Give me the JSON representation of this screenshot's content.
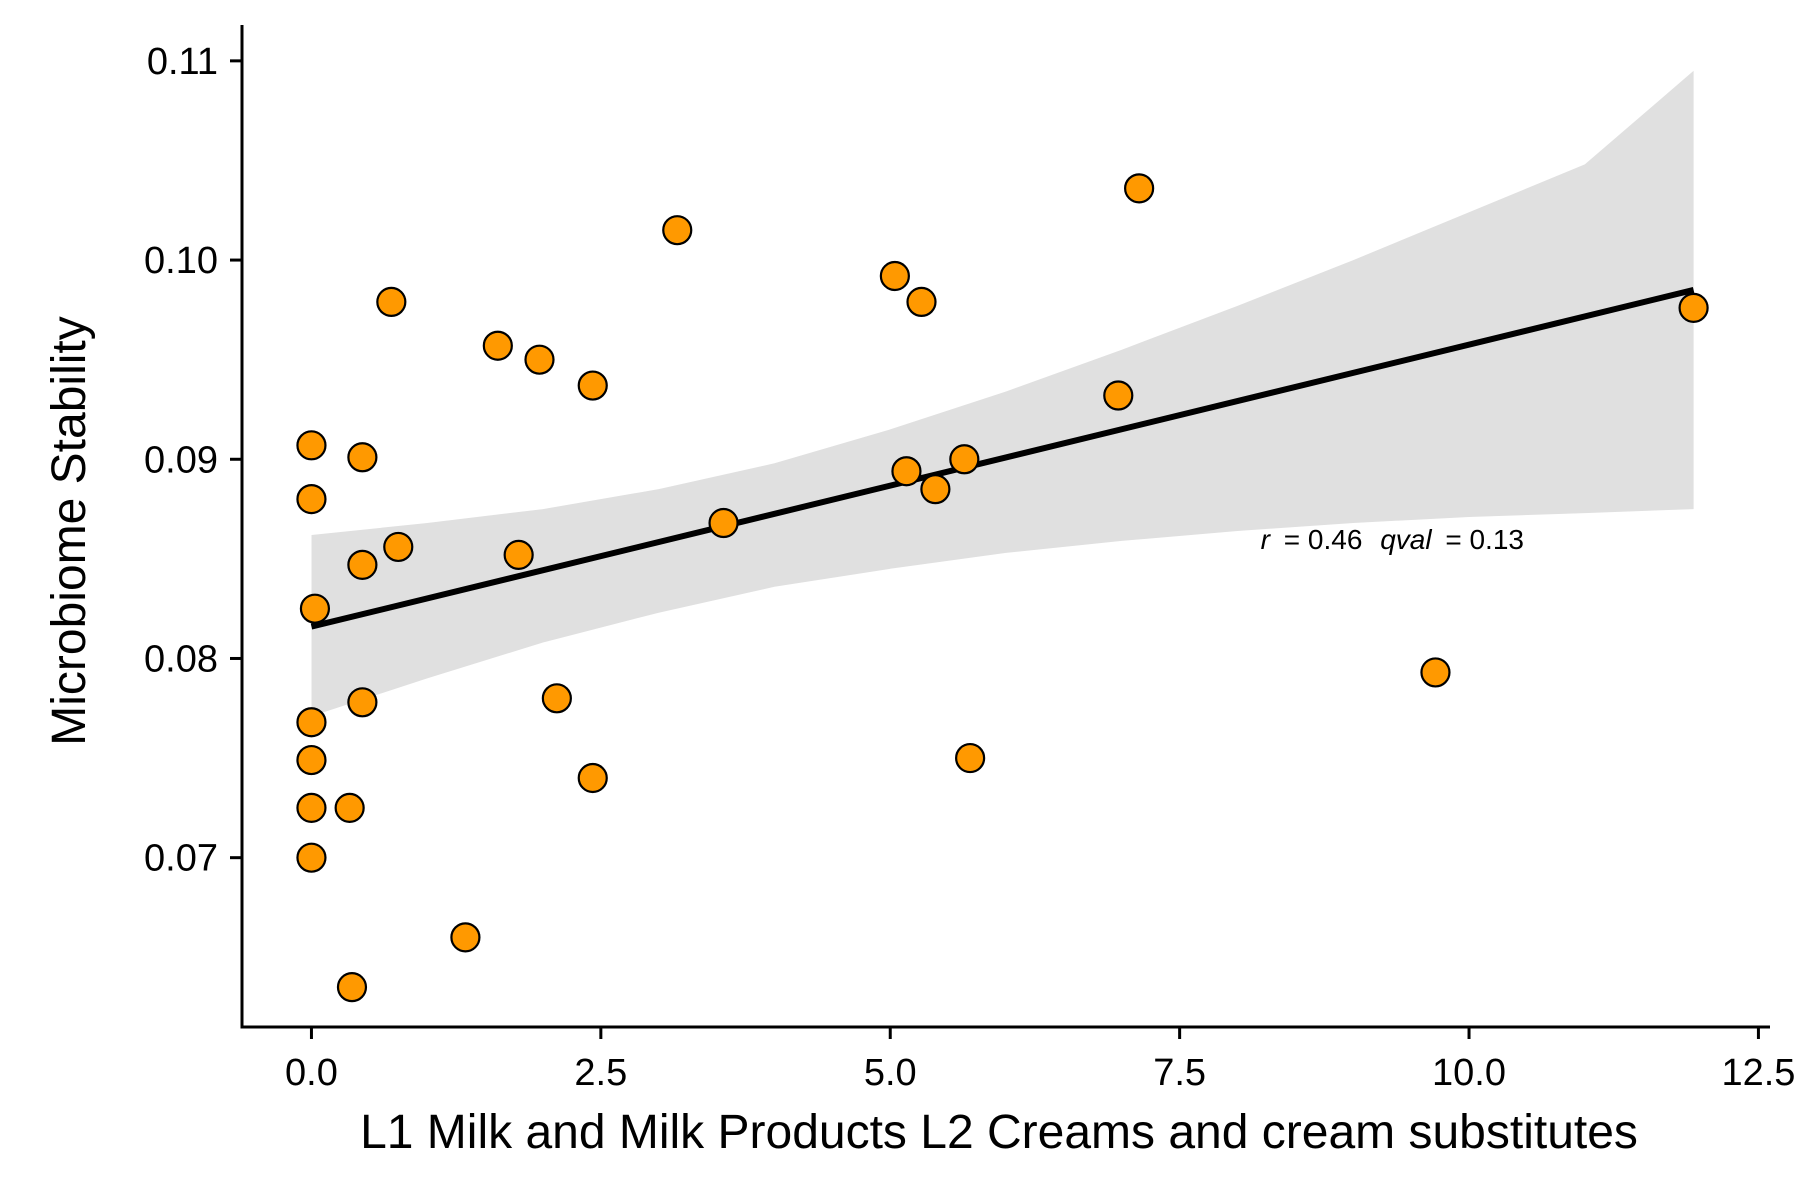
{
  "chart_data": {
    "type": "scatter",
    "xlabel": "L1 Milk and Milk Products  L2 Creams and cream substitutes",
    "ylabel": "Microbiome Stability",
    "xlim": [
      -0.6,
      12.6
    ],
    "ylim": [
      0.0615,
      0.1118
    ],
    "x_ticks": [
      0.0,
      2.5,
      5.0,
      7.5,
      10.0,
      12.5
    ],
    "x_tick_labels": [
      "0.0",
      "2.5",
      "5.0",
      "7.5",
      "10.0",
      "12.5"
    ],
    "y_ticks": [
      0.07,
      0.08,
      0.09,
      0.1,
      0.11
    ],
    "y_tick_labels": [
      "0.07",
      "0.08",
      "0.09",
      "0.10",
      "0.11"
    ],
    "grid": false,
    "legend": "none",
    "point_color": "#FF9900",
    "point_edge_color": "#000000",
    "band_color": "#e0e0e0",
    "line_color": "#000000",
    "points": [
      {
        "x": 0.0,
        "y": 0.0907
      },
      {
        "x": 0.0,
        "y": 0.088
      },
      {
        "x": 0.03,
        "y": 0.0825
      },
      {
        "x": 0.0,
        "y": 0.0768
      },
      {
        "x": 0.0,
        "y": 0.0749
      },
      {
        "x": 0.0,
        "y": 0.0725
      },
      {
        "x": 0.0,
        "y": 0.07
      },
      {
        "x": 0.33,
        "y": 0.0725
      },
      {
        "x": 0.35,
        "y": 0.0635
      },
      {
        "x": 0.44,
        "y": 0.0901
      },
      {
        "x": 0.44,
        "y": 0.0847
      },
      {
        "x": 0.44,
        "y": 0.0778
      },
      {
        "x": 0.69,
        "y": 0.0979
      },
      {
        "x": 0.75,
        "y": 0.0856
      },
      {
        "x": 1.33,
        "y": 0.066
      },
      {
        "x": 1.61,
        "y": 0.0957
      },
      {
        "x": 1.79,
        "y": 0.0852
      },
      {
        "x": 1.97,
        "y": 0.095
      },
      {
        "x": 2.12,
        "y": 0.078
      },
      {
        "x": 2.43,
        "y": 0.0937
      },
      {
        "x": 2.43,
        "y": 0.074
      },
      {
        "x": 3.16,
        "y": 0.1015
      },
      {
        "x": 3.56,
        "y": 0.0868
      },
      {
        "x": 5.04,
        "y": 0.0992
      },
      {
        "x": 5.14,
        "y": 0.0894
      },
      {
        "x": 5.27,
        "y": 0.0979
      },
      {
        "x": 5.39,
        "y": 0.0885
      },
      {
        "x": 5.64,
        "y": 0.09
      },
      {
        "x": 5.69,
        "y": 0.075
      },
      {
        "x": 6.97,
        "y": 0.0932
      },
      {
        "x": 7.15,
        "y": 0.1036
      },
      {
        "x": 9.71,
        "y": 0.0793
      },
      {
        "x": 11.94,
        "y": 0.0976
      }
    ],
    "regression_line": {
      "x": [
        0.0,
        11.94
      ],
      "y": [
        0.0816,
        0.0985
      ]
    },
    "confidence_band": {
      "x": [
        0.0,
        1.0,
        2.0,
        3.0,
        4.0,
        5.0,
        6.0,
        7.0,
        8.0,
        9.0,
        10.0,
        11.0,
        11.94
      ],
      "upper": [
        0.0862,
        0.0868,
        0.0875,
        0.0885,
        0.0898,
        0.0915,
        0.0934,
        0.0955,
        0.0977,
        0.1,
        0.1024,
        0.1048,
        0.1095
      ],
      "lower": [
        0.0771,
        0.079,
        0.0808,
        0.0823,
        0.0836,
        0.0845,
        0.0853,
        0.0859,
        0.0864,
        0.0868,
        0.0871,
        0.0873,
        0.0875
      ]
    },
    "annotation": {
      "r_label": "r",
      "r_value": "= 0.46",
      "q_label": "qval",
      "q_value": "= 0.13",
      "x": 8.2,
      "y": 0.0855
    }
  }
}
